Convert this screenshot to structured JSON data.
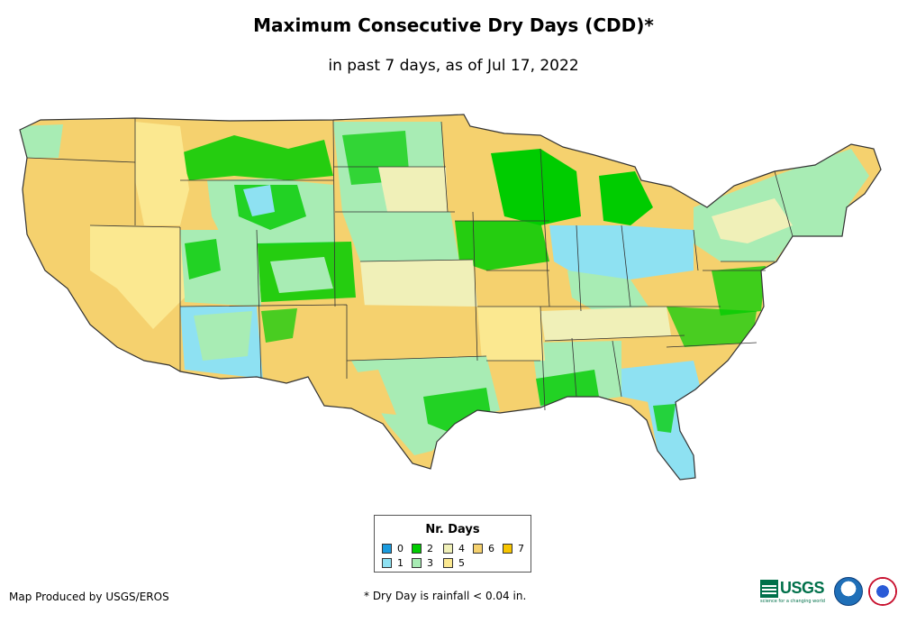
{
  "title": "Maximum Consecutive Dry Days (CDD)*",
  "subtitle": "in past 7 days, as of Jul 17, 2022",
  "legend": {
    "title": "Nr. Days",
    "items": [
      {
        "label": "0",
        "color": "#1a9bde"
      },
      {
        "label": "1",
        "color": "#8ee1f2"
      },
      {
        "label": "2",
        "color": "#00cc00"
      },
      {
        "label": "3",
        "color": "#a8ecb4"
      },
      {
        "label": "4",
        "color": "#f0f0b8"
      },
      {
        "label": "5",
        "color": "#fbe890"
      },
      {
        "label": "6",
        "color": "#f5d16e"
      },
      {
        "label": "7",
        "color": "#f7c500"
      }
    ]
  },
  "footer": {
    "producer": "Map Produced by USGS/EROS",
    "note": "* Dry Day is rainfall < 0.04 in."
  },
  "logos": {
    "usgs_text": "USGS",
    "usgs_tagline": "science for a changing world",
    "agencies": [
      "NOAA",
      "National Weather Service"
    ]
  },
  "colors": {
    "background": "#ffffff",
    "state_border": "#333333"
  }
}
